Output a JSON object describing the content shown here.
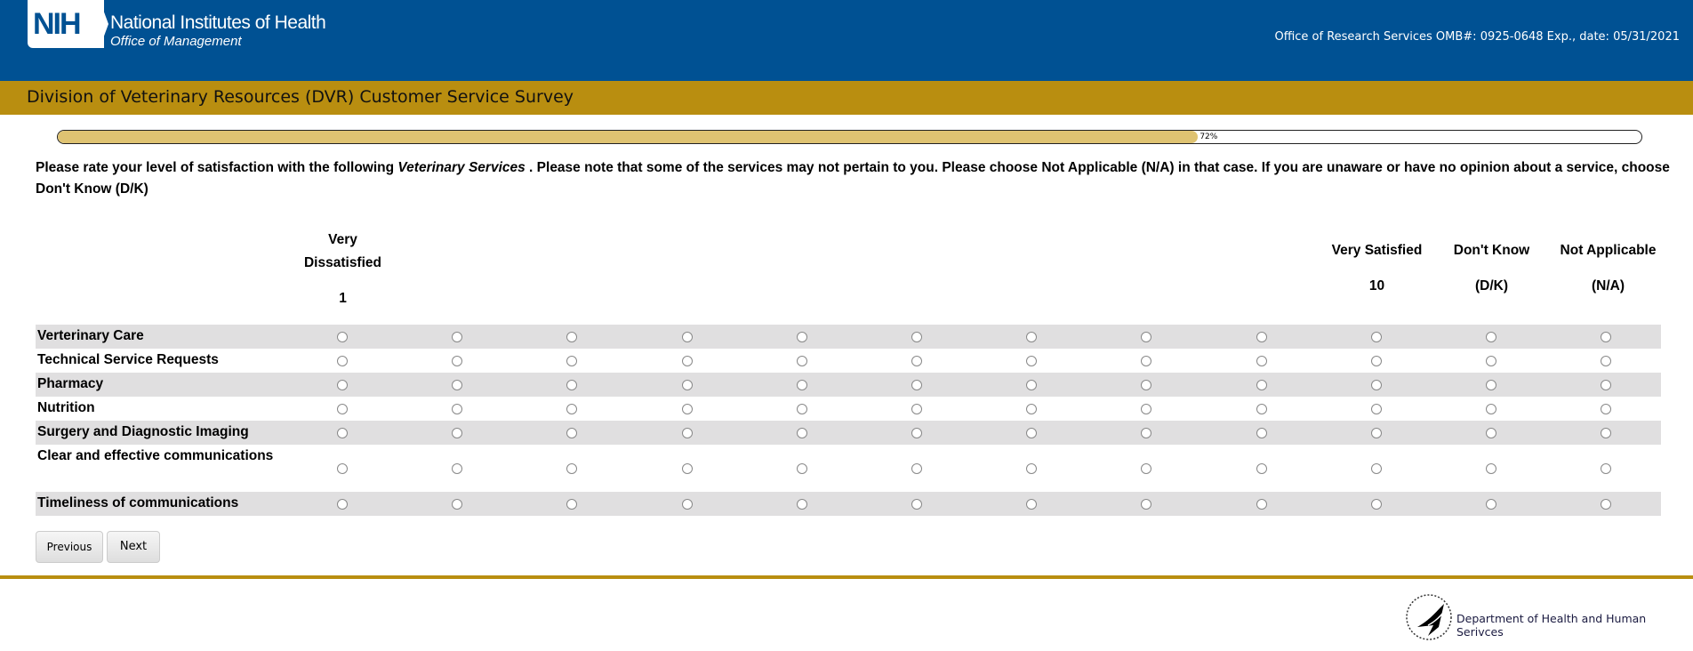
{
  "header": {
    "logo_text": "NIH",
    "org": "National Institutes of Health",
    "suborg": "Office of Management",
    "omb": "Office of Research Services OMB#: 0925-0648 Exp., date: 05/31/2021"
  },
  "title": "Division of Veterinary Resources (DVR) Customer Service Survey",
  "progress": {
    "percent": 72,
    "label": "72%"
  },
  "instructions": {
    "pre": "Please rate your level of satisfaction with the following ",
    "em": "Veterinary Services",
    "post": " . Please note that some of the services may not pertain to you. Please choose Not Applicable (N/A) in that case. If you are unaware or have no opinion about a service, choose Don't Know (D/K)"
  },
  "columns": {
    "first": {
      "label_line1": "Very",
      "label_line2": "Dissatisfied",
      "value": "1"
    },
    "last": {
      "label": "Very Satisfied",
      "value": "10"
    },
    "dk": {
      "label": "Don't Know",
      "value": "(D/K)"
    },
    "na": {
      "label": "Not Applicable",
      "value": "(N/A)"
    }
  },
  "rows": [
    "Verterinary Care",
    "Technical Service Requests",
    "Pharmacy",
    "Nutrition",
    "Surgery and Diagnostic Imaging",
    "Clear and effective communications",
    "Timeliness of communications"
  ],
  "buttons": {
    "previous": "Previous",
    "next": "Next"
  },
  "footer": {
    "text": "Department of Health and Human Serivces"
  },
  "colors": {
    "header_blue": "#005193",
    "gold": "#b98e10",
    "progress_fill": "#dfc372"
  }
}
